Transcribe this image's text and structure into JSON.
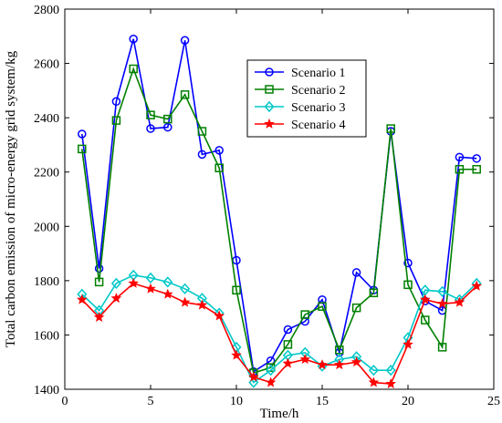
{
  "chart_data": {
    "type": "line",
    "xlabel": "Time/h",
    "ylabel": "Total carbon emission of micro-energy grid system/kg",
    "xlim": [
      0,
      25
    ],
    "ylim": [
      1400,
      2800
    ],
    "xticks": [
      0,
      5,
      10,
      15,
      20,
      25
    ],
    "yticks": [
      1400,
      1600,
      1800,
      2000,
      2200,
      2400,
      2600,
      2800
    ],
    "grid": false,
    "legend_position": "top-right",
    "x": [
      1,
      2,
      3,
      4,
      5,
      6,
      7,
      8,
      9,
      10,
      11,
      12,
      13,
      14,
      15,
      16,
      17,
      18,
      19,
      20,
      21,
      22,
      23,
      24
    ],
    "series": [
      {
        "name": "Scenario 1",
        "color": "#0000ff",
        "marker": "circle",
        "values": [
          2340,
          1845,
          2460,
          2690,
          2360,
          2365,
          2685,
          2265,
          2280,
          1875,
          1465,
          1505,
          1620,
          1650,
          1730,
          1535,
          1830,
          1765,
          2350,
          1865,
          1725,
          1690,
          2255,
          2250
        ]
      },
      {
        "name": "Scenario 2",
        "color": "#008000",
        "marker": "square",
        "values": [
          2285,
          1795,
          2390,
          2580,
          2410,
          2395,
          2485,
          2350,
          2215,
          1765,
          1460,
          1480,
          1565,
          1675,
          1705,
          1545,
          1700,
          1755,
          2360,
          1785,
          1655,
          1555,
          2210,
          2210
        ]
      },
      {
        "name": "Scenario 3",
        "color": "#00c8c8",
        "marker": "diamond",
        "values": [
          1750,
          1690,
          1790,
          1820,
          1810,
          1795,
          1770,
          1735,
          1680,
          1555,
          1425,
          1470,
          1525,
          1535,
          1485,
          1510,
          1520,
          1470,
          1470,
          1590,
          1765,
          1760,
          1730,
          1790
        ]
      },
      {
        "name": "Scenario 4",
        "color": "#ff0000",
        "marker": "star",
        "values": [
          1730,
          1665,
          1735,
          1790,
          1770,
          1750,
          1720,
          1710,
          1670,
          1525,
          1445,
          1425,
          1495,
          1510,
          1490,
          1490,
          1500,
          1425,
          1420,
          1565,
          1730,
          1715,
          1720,
          1780
        ]
      }
    ]
  }
}
